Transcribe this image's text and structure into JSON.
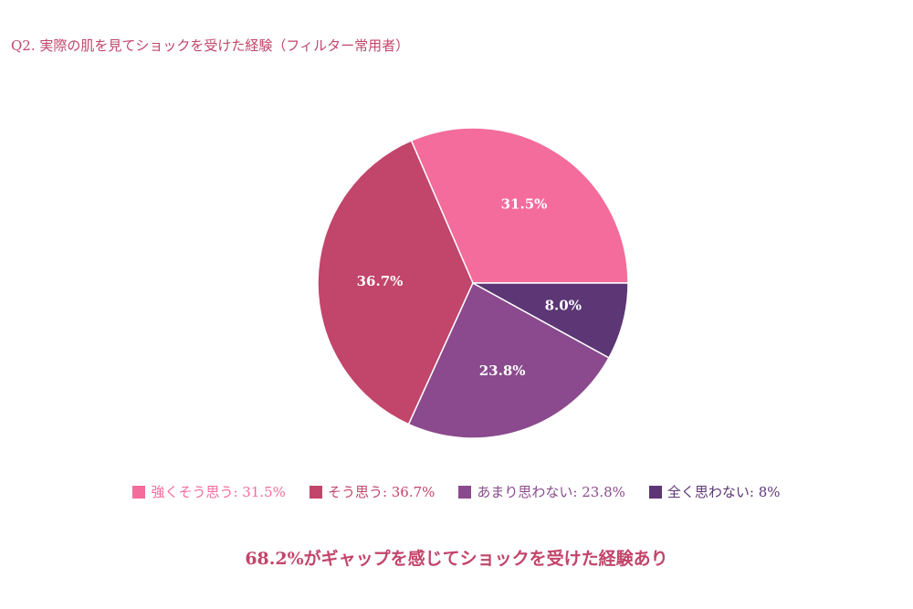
{
  "chart_data": {
    "type": "pie",
    "title": "Q2. 実際の肌を見てショックを受けた経験（フィルター常用者）",
    "start_angle_deg": 0,
    "direction": "clockwise",
    "slices": [
      {
        "label": "強くそう思う",
        "value": 31.5,
        "display": "31.5%",
        "legend_text": "強くそう思う: 31.5%",
        "color": "#f36c9c"
      },
      {
        "label": "そう思う",
        "value": 36.7,
        "display": "36.7%",
        "legend_text": "そう思う: 36.7%",
        "color": "#c2456b"
      },
      {
        "label": "あまり思わない",
        "value": 23.8,
        "display": "23.8%",
        "legend_text": "あまり思わない: 23.8%",
        "color": "#8a4a8d"
      },
      {
        "label": "全く思わない",
        "value": 8.0,
        "display": "8.0%",
        "legend_text": "全く思わない: 8%",
        "color": "#5c3675"
      }
    ],
    "legend_placement": "bottom",
    "summary": "68.2%がギャップを感じてショックを受けた経験あり"
  }
}
